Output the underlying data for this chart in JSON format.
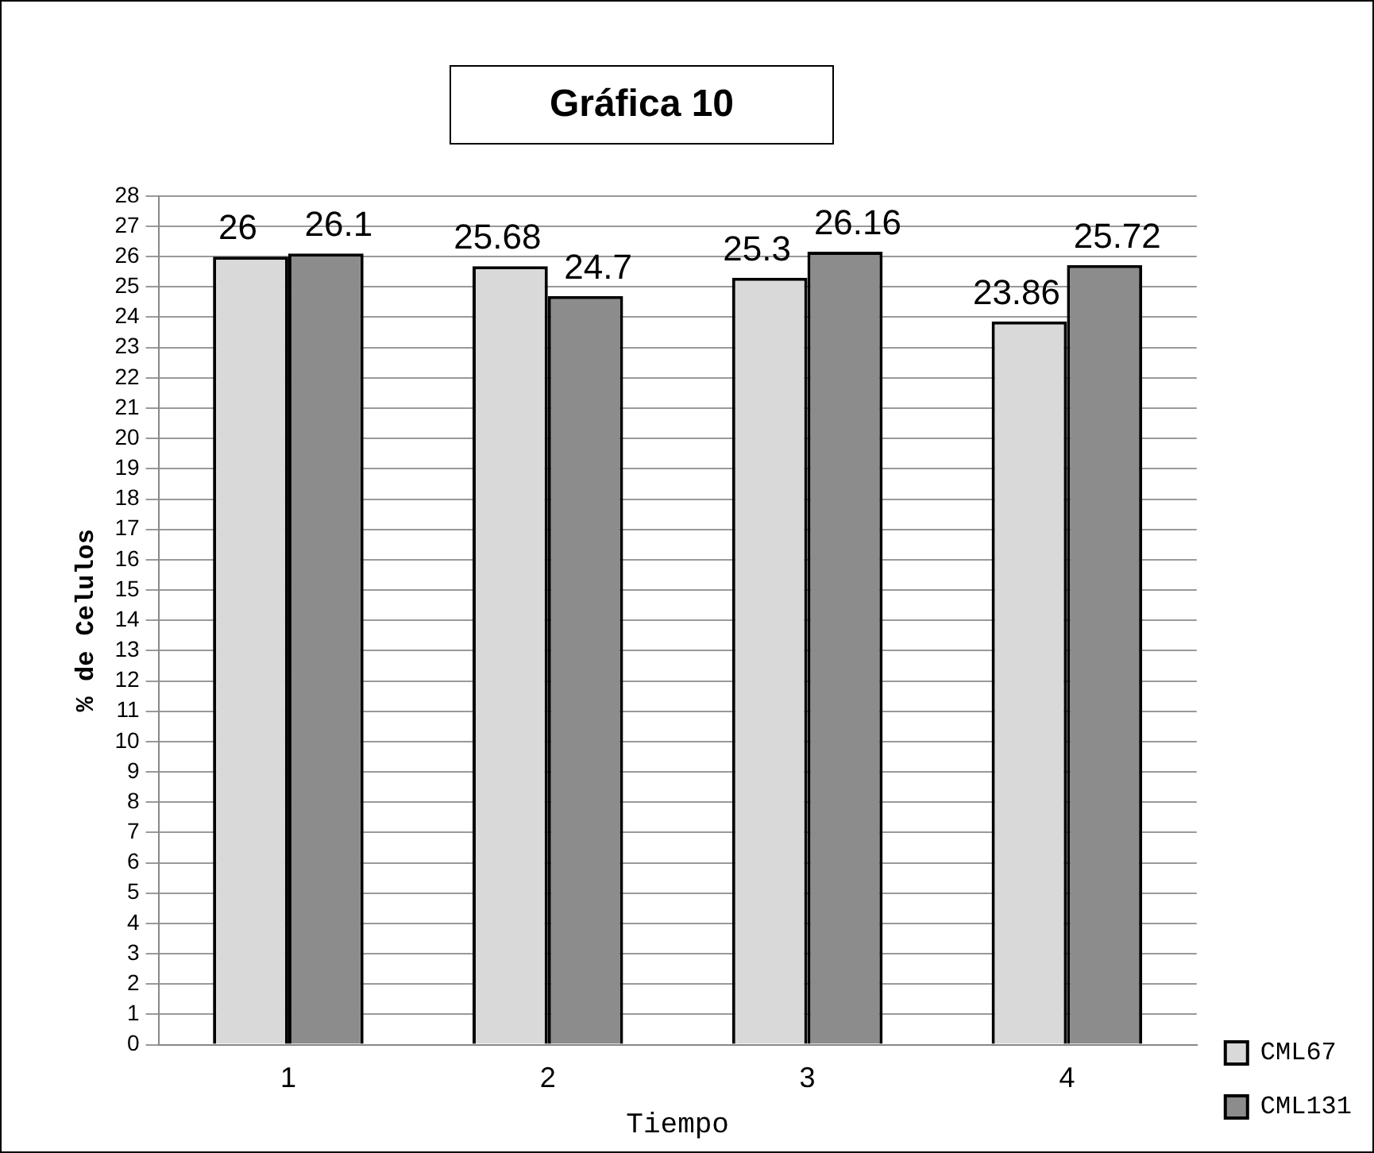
{
  "chart_data": {
    "type": "bar",
    "title": "Gráfica 10",
    "xlabel": "Tiempo",
    "ylabel": "% de Celulos",
    "categories": [
      "1",
      "2",
      "3",
      "4"
    ],
    "series": [
      {
        "name": "CML67",
        "color": "#d9d9d9",
        "values": [
          26,
          25.68,
          25.3,
          23.86
        ]
      },
      {
        "name": "CML131",
        "color": "#8c8c8c",
        "values": [
          26.1,
          24.7,
          26.16,
          25.72
        ]
      }
    ],
    "ylim": [
      0,
      28
    ],
    "yticks": [
      0,
      1,
      2,
      3,
      4,
      5,
      6,
      7,
      8,
      9,
      10,
      11,
      12,
      13,
      14,
      15,
      16,
      17,
      18,
      19,
      20,
      21,
      22,
      23,
      24,
      25,
      26,
      27,
      28
    ],
    "grid": "y",
    "legend": "bottom right",
    "data_labels": true
  }
}
